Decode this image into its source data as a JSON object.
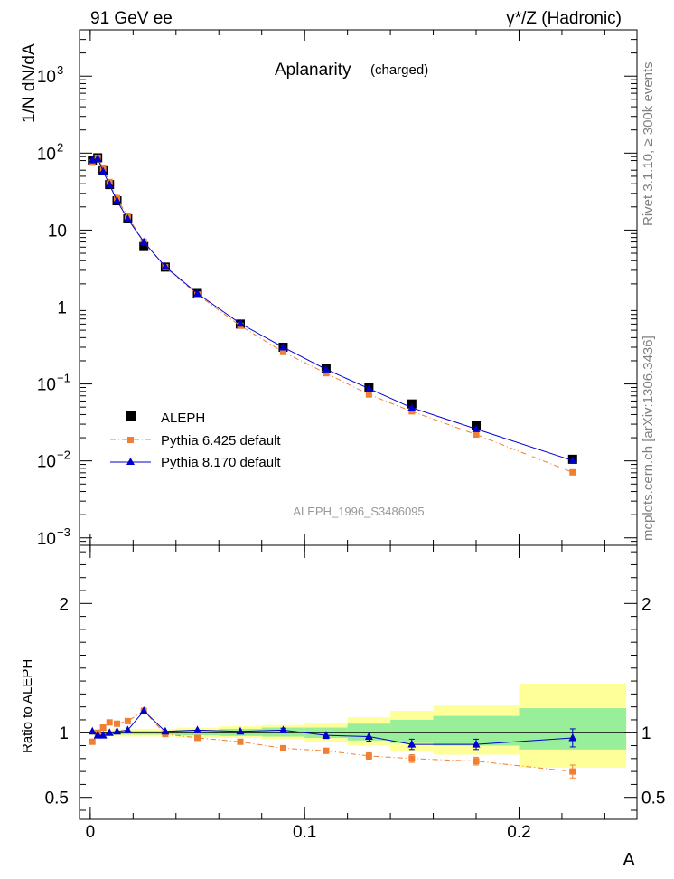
{
  "header": {
    "left": "91 GeV ee",
    "right": "γ*/Z (Hadronic)"
  },
  "side_labels": {
    "top": "Rivet 3.1.10, ≥ 300k events",
    "bottom": "mcplots.cern.ch [arXiv:1306.3436]"
  },
  "colors": {
    "aleph": "#000000",
    "pythia6": "#f07f30",
    "pythia8": "#0000cc",
    "band_yellow": "#ffff99",
    "band_green": "#99ee99",
    "watermark": "#999999"
  },
  "chart_data": [
    {
      "type": "scatter",
      "title": "Aplanarity",
      "subtitle": "(charged)",
      "ylabel": "1/N dN/dA",
      "yscale": "log",
      "ylim": [
        0.0008,
        4000
      ],
      "xlim": [
        -0.005,
        0.255
      ],
      "yticks": [
        {
          "v": 0.001,
          "base": "10",
          "exp": "−3"
        },
        {
          "v": 0.01,
          "base": "10",
          "exp": "−2"
        },
        {
          "v": 0.1,
          "base": "10",
          "exp": "−1"
        },
        {
          "v": 1,
          "base": "1",
          "exp": ""
        },
        {
          "v": 10,
          "base": "10",
          "exp": ""
        },
        {
          "v": 100,
          "base": "10",
          "exp": "2"
        },
        {
          "v": 1000,
          "base": "10",
          "exp": "3"
        }
      ],
      "legend": {
        "placement": "bottom-left",
        "entries": [
          "ALEPH",
          "Pythia 6.425 default",
          "Pythia 8.170 default"
        ]
      },
      "watermark": "ALEPH_1996_S3486095",
      "series": [
        {
          "name": "ALEPH",
          "marker": "square",
          "x": [
            0.001,
            0.0035,
            0.006,
            0.009,
            0.0125,
            0.0175,
            0.025,
            0.035,
            0.05,
            0.07,
            0.09,
            0.11,
            0.13,
            0.15,
            0.18,
            0.225
          ],
          "y": [
            80,
            87,
            59,
            39,
            24,
            14,
            6.1,
            3.3,
            1.5,
            0.6,
            0.3,
            0.16,
            0.09,
            0.055,
            0.029,
            0.0105
          ]
        },
        {
          "name": "Pythia 6.425 default",
          "marker": "small-square",
          "line": "dash-dot",
          "x": [
            0.001,
            0.0035,
            0.006,
            0.009,
            0.0125,
            0.0175,
            0.025,
            0.035,
            0.05,
            0.07,
            0.09,
            0.11,
            0.13,
            0.15,
            0.18,
            0.225
          ],
          "y": [
            75,
            87,
            63,
            42,
            26,
            15,
            7,
            3.3,
            1.45,
            0.57,
            0.26,
            0.138,
            0.073,
            0.044,
            0.022,
            0.0071
          ]
        },
        {
          "name": "Pythia 8.170 default",
          "marker": "triangle",
          "line": "solid",
          "x": [
            0.001,
            0.0035,
            0.006,
            0.009,
            0.0125,
            0.0175,
            0.025,
            0.035,
            0.05,
            0.07,
            0.09,
            0.11,
            0.13,
            0.15,
            0.18,
            0.225
          ],
          "y": [
            81,
            85,
            58,
            39,
            24,
            14,
            7,
            3.35,
            1.5,
            0.61,
            0.3,
            0.155,
            0.087,
            0.049,
            0.026,
            0.0101
          ]
        }
      ]
    },
    {
      "type": "scatter",
      "ylabel": "Ratio to ALEPH",
      "xlabel": "A",
      "ylim": [
        0.33,
        2.45
      ],
      "xlim": [
        -0.005,
        0.255
      ],
      "yticks": [
        0.5,
        1,
        2
      ],
      "xticks": [
        0,
        0.1,
        0.2
      ],
      "reference_line": 1,
      "bands": [
        {
          "x0": 0.0,
          "x1": 0.002,
          "yellow": [
            0.98,
            1.02
          ],
          "green": [
            0.99,
            1.01
          ]
        },
        {
          "x0": 0.002,
          "x1": 0.005,
          "yellow": [
            0.98,
            1.02
          ],
          "green": [
            0.99,
            1.01
          ]
        },
        {
          "x0": 0.005,
          "x1": 0.0075,
          "yellow": [
            0.98,
            1.02
          ],
          "green": [
            0.99,
            1.01
          ]
        },
        {
          "x0": 0.0075,
          "x1": 0.01,
          "yellow": [
            0.98,
            1.02
          ],
          "green": [
            0.99,
            1.01
          ]
        },
        {
          "x0": 0.01,
          "x1": 0.015,
          "yellow": [
            0.97,
            1.03
          ],
          "green": [
            0.985,
            1.015
          ]
        },
        {
          "x0": 0.015,
          "x1": 0.02,
          "yellow": [
            0.97,
            1.03
          ],
          "green": [
            0.985,
            1.015
          ]
        },
        {
          "x0": 0.02,
          "x1": 0.03,
          "yellow": [
            0.97,
            1.03
          ],
          "green": [
            0.985,
            1.015
          ]
        },
        {
          "x0": 0.03,
          "x1": 0.04,
          "yellow": [
            0.97,
            1.03
          ],
          "green": [
            0.985,
            1.015
          ]
        },
        {
          "x0": 0.04,
          "x1": 0.06,
          "yellow": [
            0.96,
            1.04
          ],
          "green": [
            0.98,
            1.02
          ]
        },
        {
          "x0": 0.06,
          "x1": 0.08,
          "yellow": [
            0.96,
            1.05
          ],
          "green": [
            0.975,
            1.03
          ]
        },
        {
          "x0": 0.08,
          "x1": 0.1,
          "yellow": [
            0.95,
            1.06
          ],
          "green": [
            0.97,
            1.04
          ]
        },
        {
          "x0": 0.1,
          "x1": 0.12,
          "yellow": [
            0.93,
            1.07
          ],
          "green": [
            0.96,
            1.04
          ]
        },
        {
          "x0": 0.12,
          "x1": 0.14,
          "yellow": [
            0.9,
            1.12
          ],
          "green": [
            0.94,
            1.07
          ]
        },
        {
          "x0": 0.14,
          "x1": 0.16,
          "yellow": [
            0.86,
            1.17
          ],
          "green": [
            0.92,
            1.1
          ]
        },
        {
          "x0": 0.16,
          "x1": 0.2,
          "yellow": [
            0.83,
            1.21
          ],
          "green": [
            0.9,
            1.13
          ]
        },
        {
          "x0": 0.2,
          "x1": 0.25,
          "yellow": [
            0.73,
            1.38
          ],
          "green": [
            0.87,
            1.19
          ]
        }
      ],
      "series": [
        {
          "name": "Pythia 6.425 default",
          "marker": "small-square",
          "line": "dash-dot",
          "x": [
            0.001,
            0.0035,
            0.006,
            0.009,
            0.0125,
            0.0175,
            0.025,
            0.035,
            0.05,
            0.07,
            0.09,
            0.11,
            0.13,
            0.15,
            0.18,
            0.225
          ],
          "y": [
            0.93,
            1.0,
            1.04,
            1.08,
            1.07,
            1.09,
            1.17,
            0.99,
            0.96,
            0.93,
            0.88,
            0.86,
            0.82,
            0.8,
            0.78,
            0.7
          ],
          "err": [
            0.01,
            0.01,
            0.01,
            0.01,
            0.01,
            0.01,
            0.01,
            0.01,
            0.01,
            0.01,
            0.015,
            0.02,
            0.025,
            0.03,
            0.03,
            0.05
          ]
        },
        {
          "name": "Pythia 8.170 default",
          "marker": "triangle",
          "line": "solid",
          "x": [
            0.001,
            0.0035,
            0.006,
            0.009,
            0.0125,
            0.0175,
            0.025,
            0.035,
            0.05,
            0.07,
            0.09,
            0.11,
            0.13,
            0.15,
            0.18,
            0.225
          ],
          "y": [
            1.01,
            0.98,
            0.98,
            1.0,
            1.01,
            1.02,
            1.17,
            1.01,
            1.02,
            1.01,
            1.02,
            0.98,
            0.97,
            0.91,
            0.91,
            0.96
          ],
          "err": [
            0.01,
            0.01,
            0.01,
            0.01,
            0.01,
            0.01,
            0.01,
            0.01,
            0.01,
            0.01,
            0.015,
            0.025,
            0.035,
            0.04,
            0.04,
            0.07
          ]
        }
      ]
    }
  ]
}
